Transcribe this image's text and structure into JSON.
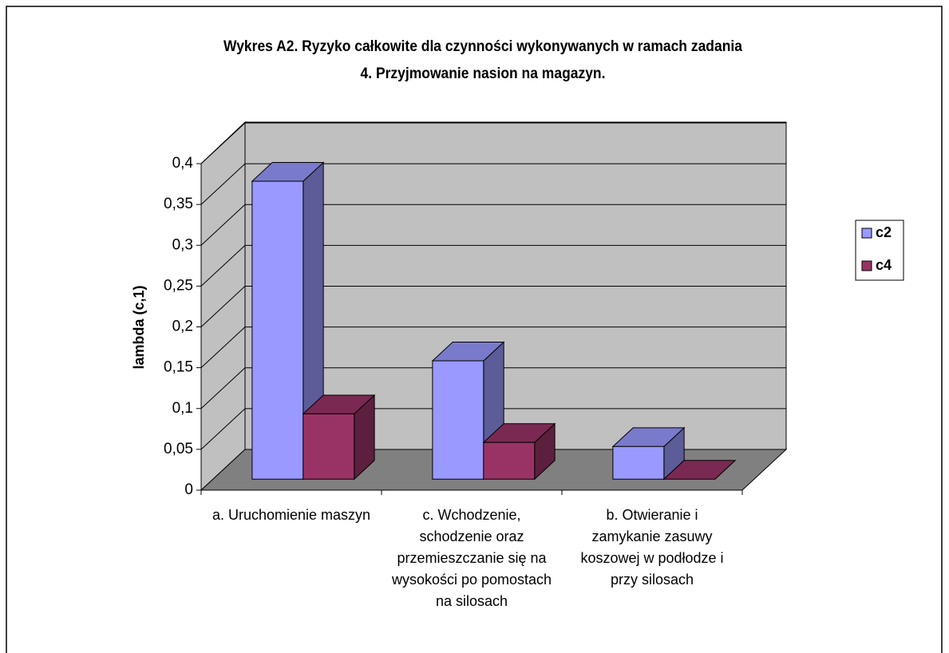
{
  "chart_data": {
    "type": "bar3d",
    "title": "Wykres A2. Ryzyko całkowite dla czynności  wykonywanych w ramach zadania\n4. Przyjmowanie nasion na magazyn.",
    "ylabel": "lambda (c,1)",
    "categories": [
      "a. Uruchomienie maszyn",
      "c. Wchodzenie,\nschodzenie oraz\nprzemieszczanie się na\nwysokości po pomostach\nna silosach",
      "b. Otwieranie i\nzamykanie zasuwy\nkoszowej w podłodze i\nprzy silosach"
    ],
    "series": [
      {
        "name": "c2",
        "color": "#9999ff",
        "values": [
          0.365,
          0.145,
          0.04
        ]
      },
      {
        "name": "c4",
        "color": "#993366",
        "values": [
          0.08,
          0.045,
          0
        ]
      }
    ],
    "ylim": [
      0,
      0.4
    ],
    "yticks": [
      0,
      {
        "value": 0.05,
        "label": "0,05"
      },
      {
        "value": 0.1,
        "label": "0,1"
      },
      {
        "value": 0.15,
        "label": "0,15"
      },
      {
        "value": 0.2,
        "label": "0,2"
      },
      {
        "value": 0.25,
        "label": "0,25"
      },
      {
        "value": 0.3,
        "label": "0,3"
      },
      {
        "value": 0.35,
        "label": "0,35"
      },
      {
        "value": 0.4,
        "label": "0,4"
      }
    ],
    "grid": true,
    "legend": "right"
  }
}
